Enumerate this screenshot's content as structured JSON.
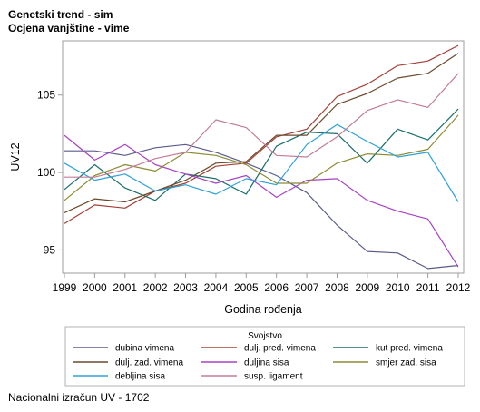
{
  "titles": {
    "line1": "Genetski trend - sim",
    "line2": "Ocjena vanjštine - vime"
  },
  "footnote": "Nacionalni izračun UV - 1702",
  "chart_data": {
    "type": "line",
    "x": [
      1999,
      2000,
      2001,
      2002,
      2003,
      2004,
      2005,
      2006,
      2007,
      2008,
      2009,
      2010,
      2011,
      2012
    ],
    "xlabel": "Godina rođenja",
    "ylabel": "UV12",
    "ylim": [
      93.5,
      108.5
    ],
    "yticks": [
      95,
      100,
      105
    ],
    "xlim": [
      1999,
      2012
    ],
    "grid": false,
    "legend_title": "Svojstvo",
    "legend_placement": "bottom",
    "series": [
      {
        "name": "dubina vimena",
        "color": "#5a5d8c",
        "values": [
          101.4,
          101.4,
          101.1,
          101.6,
          101.8,
          101.3,
          100.6,
          99.8,
          98.7,
          96.6,
          94.9,
          94.8,
          93.8,
          94.0
        ]
      },
      {
        "name": "dulj. pred. vimena",
        "color": "#a14035",
        "values": [
          96.7,
          97.9,
          97.7,
          98.8,
          99.3,
          100.4,
          100.6,
          102.3,
          102.8,
          104.9,
          105.7,
          106.9,
          107.2,
          108.2
        ]
      },
      {
        "name": "kut pred. vimena",
        "color": "#1a6f6a",
        "values": [
          98.9,
          100.5,
          99.0,
          98.2,
          99.9,
          99.6,
          98.6,
          101.7,
          102.6,
          102.5,
          100.6,
          102.8,
          102.1,
          104.1
        ]
      },
      {
        "name": "dulj. zad. vimena",
        "color": "#6b4a2c",
        "values": [
          97.4,
          98.3,
          98.1,
          98.8,
          99.5,
          100.6,
          100.7,
          102.4,
          102.4,
          104.4,
          105.1,
          106.1,
          106.4,
          107.7
        ]
      },
      {
        "name": "duljina sisa",
        "color": "#a744c2",
        "values": [
          102.4,
          100.8,
          101.8,
          100.5,
          99.9,
          99.3,
          99.8,
          98.4,
          99.5,
          99.6,
          98.2,
          97.5,
          97.0,
          93.9
        ]
      },
      {
        "name": "smjer zad. sisa",
        "color": "#8d8b35",
        "values": [
          98.2,
          99.8,
          100.5,
          100.1,
          101.3,
          101.1,
          100.5,
          99.3,
          99.3,
          100.6,
          101.2,
          101.1,
          101.5,
          103.7
        ]
      },
      {
        "name": "debljina sisa",
        "color": "#2fa2d8",
        "values": [
          100.6,
          99.5,
          99.9,
          98.8,
          99.2,
          98.6,
          99.6,
          99.2,
          101.8,
          103.1,
          102.0,
          101.0,
          101.3,
          98.1
        ]
      },
      {
        "name": "susp. ligament",
        "color": "#c27d96",
        "values": [
          99.7,
          99.7,
          100.2,
          100.9,
          101.3,
          103.4,
          102.9,
          101.1,
          101.0,
          102.3,
          104.0,
          104.7,
          104.2,
          106.4
        ]
      }
    ]
  }
}
